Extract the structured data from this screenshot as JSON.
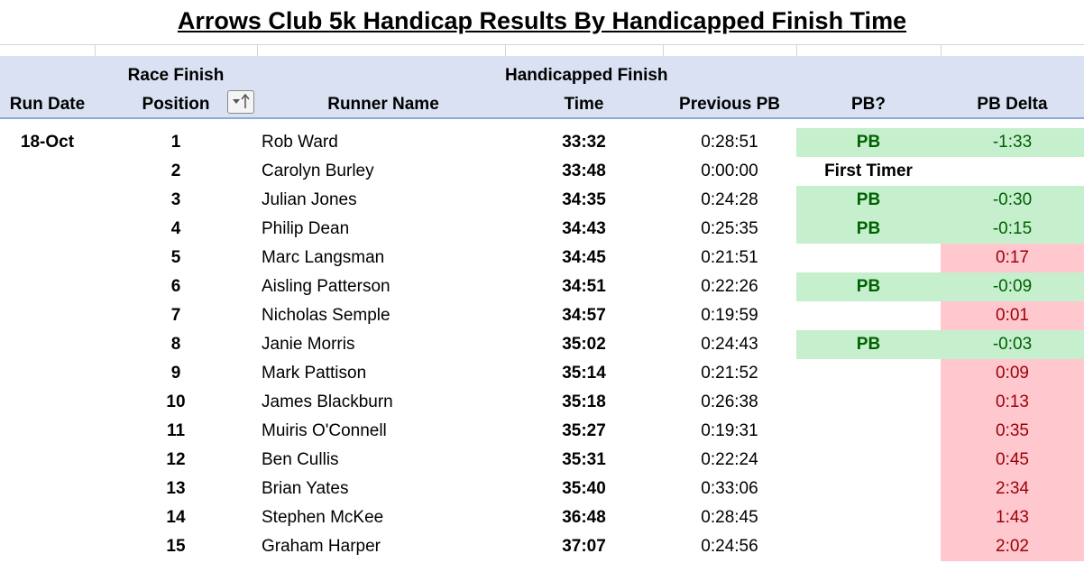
{
  "title": "Arrows Club 5k Handicap Results By Handicapped Finish Time",
  "headers": {
    "run_date": [
      "Run Date"
    ],
    "position": [
      "Race Finish",
      "Position"
    ],
    "runner": [
      "Runner Name"
    ],
    "time": [
      "Handicapped Finish",
      "Time"
    ],
    "previous_pb": [
      "Previous PB"
    ],
    "pb": [
      "PB?"
    ],
    "pb_delta": [
      "PB Delta"
    ]
  },
  "run_date": "18-Oct",
  "colors": {
    "header_fill": "#d9e1f2",
    "pb_fill": "#c6efce",
    "pb_text": "#006100",
    "slow_fill": "#ffc7ce",
    "slow_text": "#9c0006"
  },
  "rows": [
    {
      "position": 1,
      "runner": "Rob Ward",
      "time": "33:32",
      "previous_pb": "0:28:51",
      "pb": "PB",
      "pb_delta": "-1:33"
    },
    {
      "position": 2,
      "runner": "Carolyn Burley",
      "time": "33:48",
      "previous_pb": "0:00:00",
      "pb": "First Timer",
      "pb_delta": null
    },
    {
      "position": 3,
      "runner": "Julian Jones",
      "time": "34:35",
      "previous_pb": "0:24:28",
      "pb": "PB",
      "pb_delta": "-0:30"
    },
    {
      "position": 4,
      "runner": "Philip Dean",
      "time": "34:43",
      "previous_pb": "0:25:35",
      "pb": "PB",
      "pb_delta": "-0:15"
    },
    {
      "position": 5,
      "runner": "Marc Langsman",
      "time": "34:45",
      "previous_pb": "0:21:51",
      "pb": null,
      "pb_delta": "0:17"
    },
    {
      "position": 6,
      "runner": "Aisling Patterson",
      "time": "34:51",
      "previous_pb": "0:22:26",
      "pb": "PB",
      "pb_delta": "-0:09"
    },
    {
      "position": 7,
      "runner": "Nicholas Semple",
      "time": "34:57",
      "previous_pb": "0:19:59",
      "pb": null,
      "pb_delta": "0:01"
    },
    {
      "position": 8,
      "runner": "Janie Morris",
      "time": "35:02",
      "previous_pb": "0:24:43",
      "pb": "PB",
      "pb_delta": "-0:03"
    },
    {
      "position": 9,
      "runner": "Mark Pattison",
      "time": "35:14",
      "previous_pb": "0:21:52",
      "pb": null,
      "pb_delta": "0:09"
    },
    {
      "position": 10,
      "runner": "James Blackburn",
      "time": "35:18",
      "previous_pb": "0:26:38",
      "pb": null,
      "pb_delta": "0:13"
    },
    {
      "position": 11,
      "runner": "Muiris O'Connell",
      "time": "35:27",
      "previous_pb": "0:19:31",
      "pb": null,
      "pb_delta": "0:35"
    },
    {
      "position": 12,
      "runner": "Ben Cullis",
      "time": "35:31",
      "previous_pb": "0:22:24",
      "pb": null,
      "pb_delta": "0:45"
    },
    {
      "position": 13,
      "runner": "Brian Yates",
      "time": "35:40",
      "previous_pb": "0:33:06",
      "pb": null,
      "pb_delta": "2:34"
    },
    {
      "position": 14,
      "runner": "Stephen McKee",
      "time": "36:48",
      "previous_pb": "0:28:45",
      "pb": null,
      "pb_delta": "1:43"
    },
    {
      "position": 15,
      "runner": "Graham Harper",
      "time": "37:07",
      "previous_pb": "0:24:56",
      "pb": null,
      "pb_delta": "2:02"
    }
  ]
}
